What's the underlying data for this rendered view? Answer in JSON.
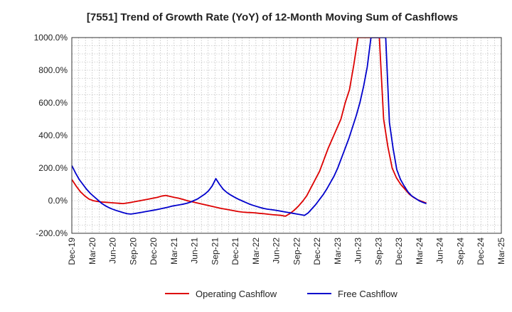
{
  "chart_data": {
    "type": "line",
    "title": "[7551]  Trend of Growth Rate (YoY) of 12-Month Moving Sum of Cashflows",
    "xlabel": "",
    "ylabel": "",
    "ylim": [
      -200,
      1000
    ],
    "yticks": [
      -200,
      0,
      200,
      400,
      600,
      800,
      1000
    ],
    "ytick_labels": [
      "-200.0%",
      "0.0%",
      "200.0%",
      "400.0%",
      "600.0%",
      "800.0%",
      "1000.0%"
    ],
    "x_tick_labels": [
      "Dec-19",
      "Mar-20",
      "Jun-20",
      "Sep-20",
      "Dec-20",
      "Mar-21",
      "Jun-21",
      "Sep-21",
      "Dec-21",
      "Mar-22",
      "Jun-22",
      "Sep-22",
      "Dec-22",
      "Mar-23",
      "Jun-23",
      "Sep-23",
      "Dec-23",
      "Mar-24",
      "Jun-24",
      "Sep-24",
      "Dec-24",
      "Mar-25"
    ],
    "x_months_total": 63,
    "grid": true,
    "legend_position": "bottom",
    "series": [
      {
        "name": "Operating Cashflow",
        "color": "#dd0000",
        "values": [
          130,
          90,
          55,
          30,
          10,
          0,
          -5,
          -8,
          -10,
          -12,
          -14,
          -16,
          -18,
          -14,
          -10,
          -5,
          0,
          5,
          10,
          15,
          20,
          28,
          32,
          26,
          20,
          15,
          8,
          0,
          -6,
          -12,
          -18,
          -24,
          -30,
          -36,
          -42,
          -48,
          -52,
          -57,
          -62,
          -67,
          -70,
          -72,
          -73,
          -75,
          -78,
          -80,
          -83,
          -86,
          -88,
          -90,
          -95,
          -80,
          -60,
          -35,
          -5,
          30,
          80,
          130,
          180,
          250,
          320,
          380,
          440,
          500,
          600,
          680,
          830,
          1000,
          1000,
          1000,
          1000,
          1000,
          1000,
          500,
          330,
          200,
          140,
          100,
          70,
          40,
          20,
          5,
          -5,
          -15
        ]
      },
      {
        "name": "Free Cashflow",
        "color": "#0000cc",
        "values": [
          215,
          170,
          130,
          100,
          70,
          45,
          25,
          5,
          -15,
          -30,
          -42,
          -52,
          -60,
          -67,
          -74,
          -80,
          -82,
          -79,
          -75,
          -71,
          -67,
          -63,
          -59,
          -55,
          -50,
          -45,
          -40,
          -34,
          -30,
          -26,
          -22,
          -17,
          -10,
          0,
          10,
          25,
          40,
          60,
          90,
          135,
          100,
          70,
          50,
          35,
          22,
          10,
          0,
          -10,
          -20,
          -28,
          -35,
          -42,
          -48,
          -52,
          -55,
          -58,
          -62,
          -66,
          -70,
          -74,
          -78,
          -82,
          -86,
          -90,
          -75,
          -50,
          -25,
          5,
          35,
          70,
          110,
          150,
          200,
          260,
          320,
          380,
          450,
          520,
          600,
          700,
          820,
          1000,
          1000,
          1000,
          1000,
          1000,
          480,
          320,
          190,
          130,
          90,
          55,
          30,
          15,
          0,
          -10,
          -18
        ]
      }
    ]
  }
}
